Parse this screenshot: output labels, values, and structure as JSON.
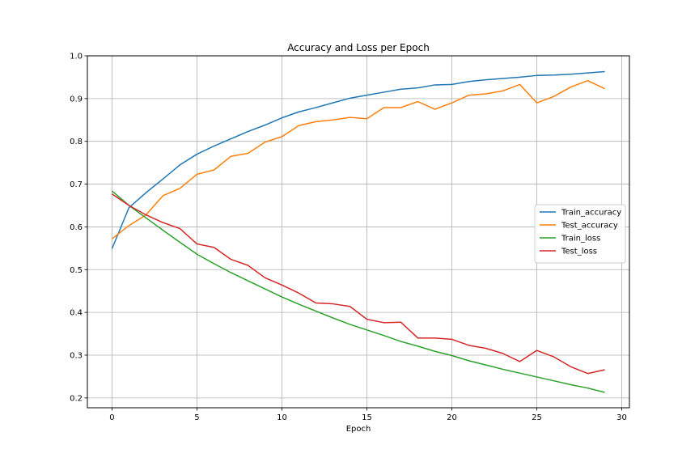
{
  "chart_data": {
    "type": "line",
    "title": "Accuracy and Loss per Epoch",
    "xlabel": "Epoch",
    "ylabel": "",
    "xlim": [
      -1.45,
      30.45
    ],
    "ylim": [
      0.177,
      1.0
    ],
    "xticks": [
      0,
      5,
      10,
      15,
      20,
      25,
      30
    ],
    "yticks": [
      0.2,
      0.3,
      0.4,
      0.5,
      0.6,
      0.7,
      0.8,
      0.9,
      1.0
    ],
    "ytick_labels": [
      "0.2",
      "0.3",
      "0.4",
      "0.5",
      "0.6",
      "0.7",
      "0.8",
      "0.9",
      "1.0"
    ],
    "grid": true,
    "legend_position": "center-right",
    "x": [
      0,
      1,
      2,
      3,
      4,
      5,
      6,
      7,
      8,
      9,
      10,
      11,
      12,
      13,
      14,
      15,
      16,
      17,
      18,
      19,
      20,
      21,
      22,
      23,
      24,
      25,
      26,
      27,
      28,
      29
    ],
    "series": [
      {
        "name": "Train_accuracy",
        "color": "#1f77b4",
        "values": [
          0.549,
          0.645,
          0.68,
          0.712,
          0.745,
          0.77,
          0.789,
          0.806,
          0.823,
          0.838,
          0.855,
          0.869,
          0.879,
          0.89,
          0.901,
          0.908,
          0.915,
          0.922,
          0.925,
          0.932,
          0.933,
          0.94,
          0.944,
          0.947,
          0.95,
          0.954,
          0.955,
          0.957,
          0.96,
          0.963
        ]
      },
      {
        "name": "Test_accuracy",
        "color": "#ff7f0e",
        "values": [
          0.572,
          0.603,
          0.628,
          0.673,
          0.69,
          0.723,
          0.733,
          0.765,
          0.772,
          0.798,
          0.811,
          0.837,
          0.846,
          0.85,
          0.856,
          0.853,
          0.879,
          0.879,
          0.893,
          0.875,
          0.89,
          0.908,
          0.911,
          0.918,
          0.933,
          0.89,
          0.905,
          0.927,
          0.942,
          0.923
        ]
      },
      {
        "name": "Train_loss",
        "color": "#2ca02c",
        "values": [
          0.684,
          0.65,
          0.621,
          0.592,
          0.564,
          0.536,
          0.514,
          0.493,
          0.474,
          0.455,
          0.436,
          0.419,
          0.403,
          0.387,
          0.372,
          0.359,
          0.346,
          0.332,
          0.321,
          0.309,
          0.299,
          0.287,
          0.277,
          0.267,
          0.258,
          0.249,
          0.24,
          0.231,
          0.223,
          0.213
        ]
      },
      {
        "name": "Test_loss",
        "color": "#d62728",
        "values": [
          0.677,
          0.65,
          0.628,
          0.61,
          0.596,
          0.56,
          0.552,
          0.524,
          0.51,
          0.481,
          0.464,
          0.445,
          0.422,
          0.42,
          0.414,
          0.384,
          0.376,
          0.377,
          0.34,
          0.34,
          0.337,
          0.323,
          0.316,
          0.304,
          0.285,
          0.311,
          0.296,
          0.273,
          0.257,
          0.266
        ]
      }
    ]
  }
}
